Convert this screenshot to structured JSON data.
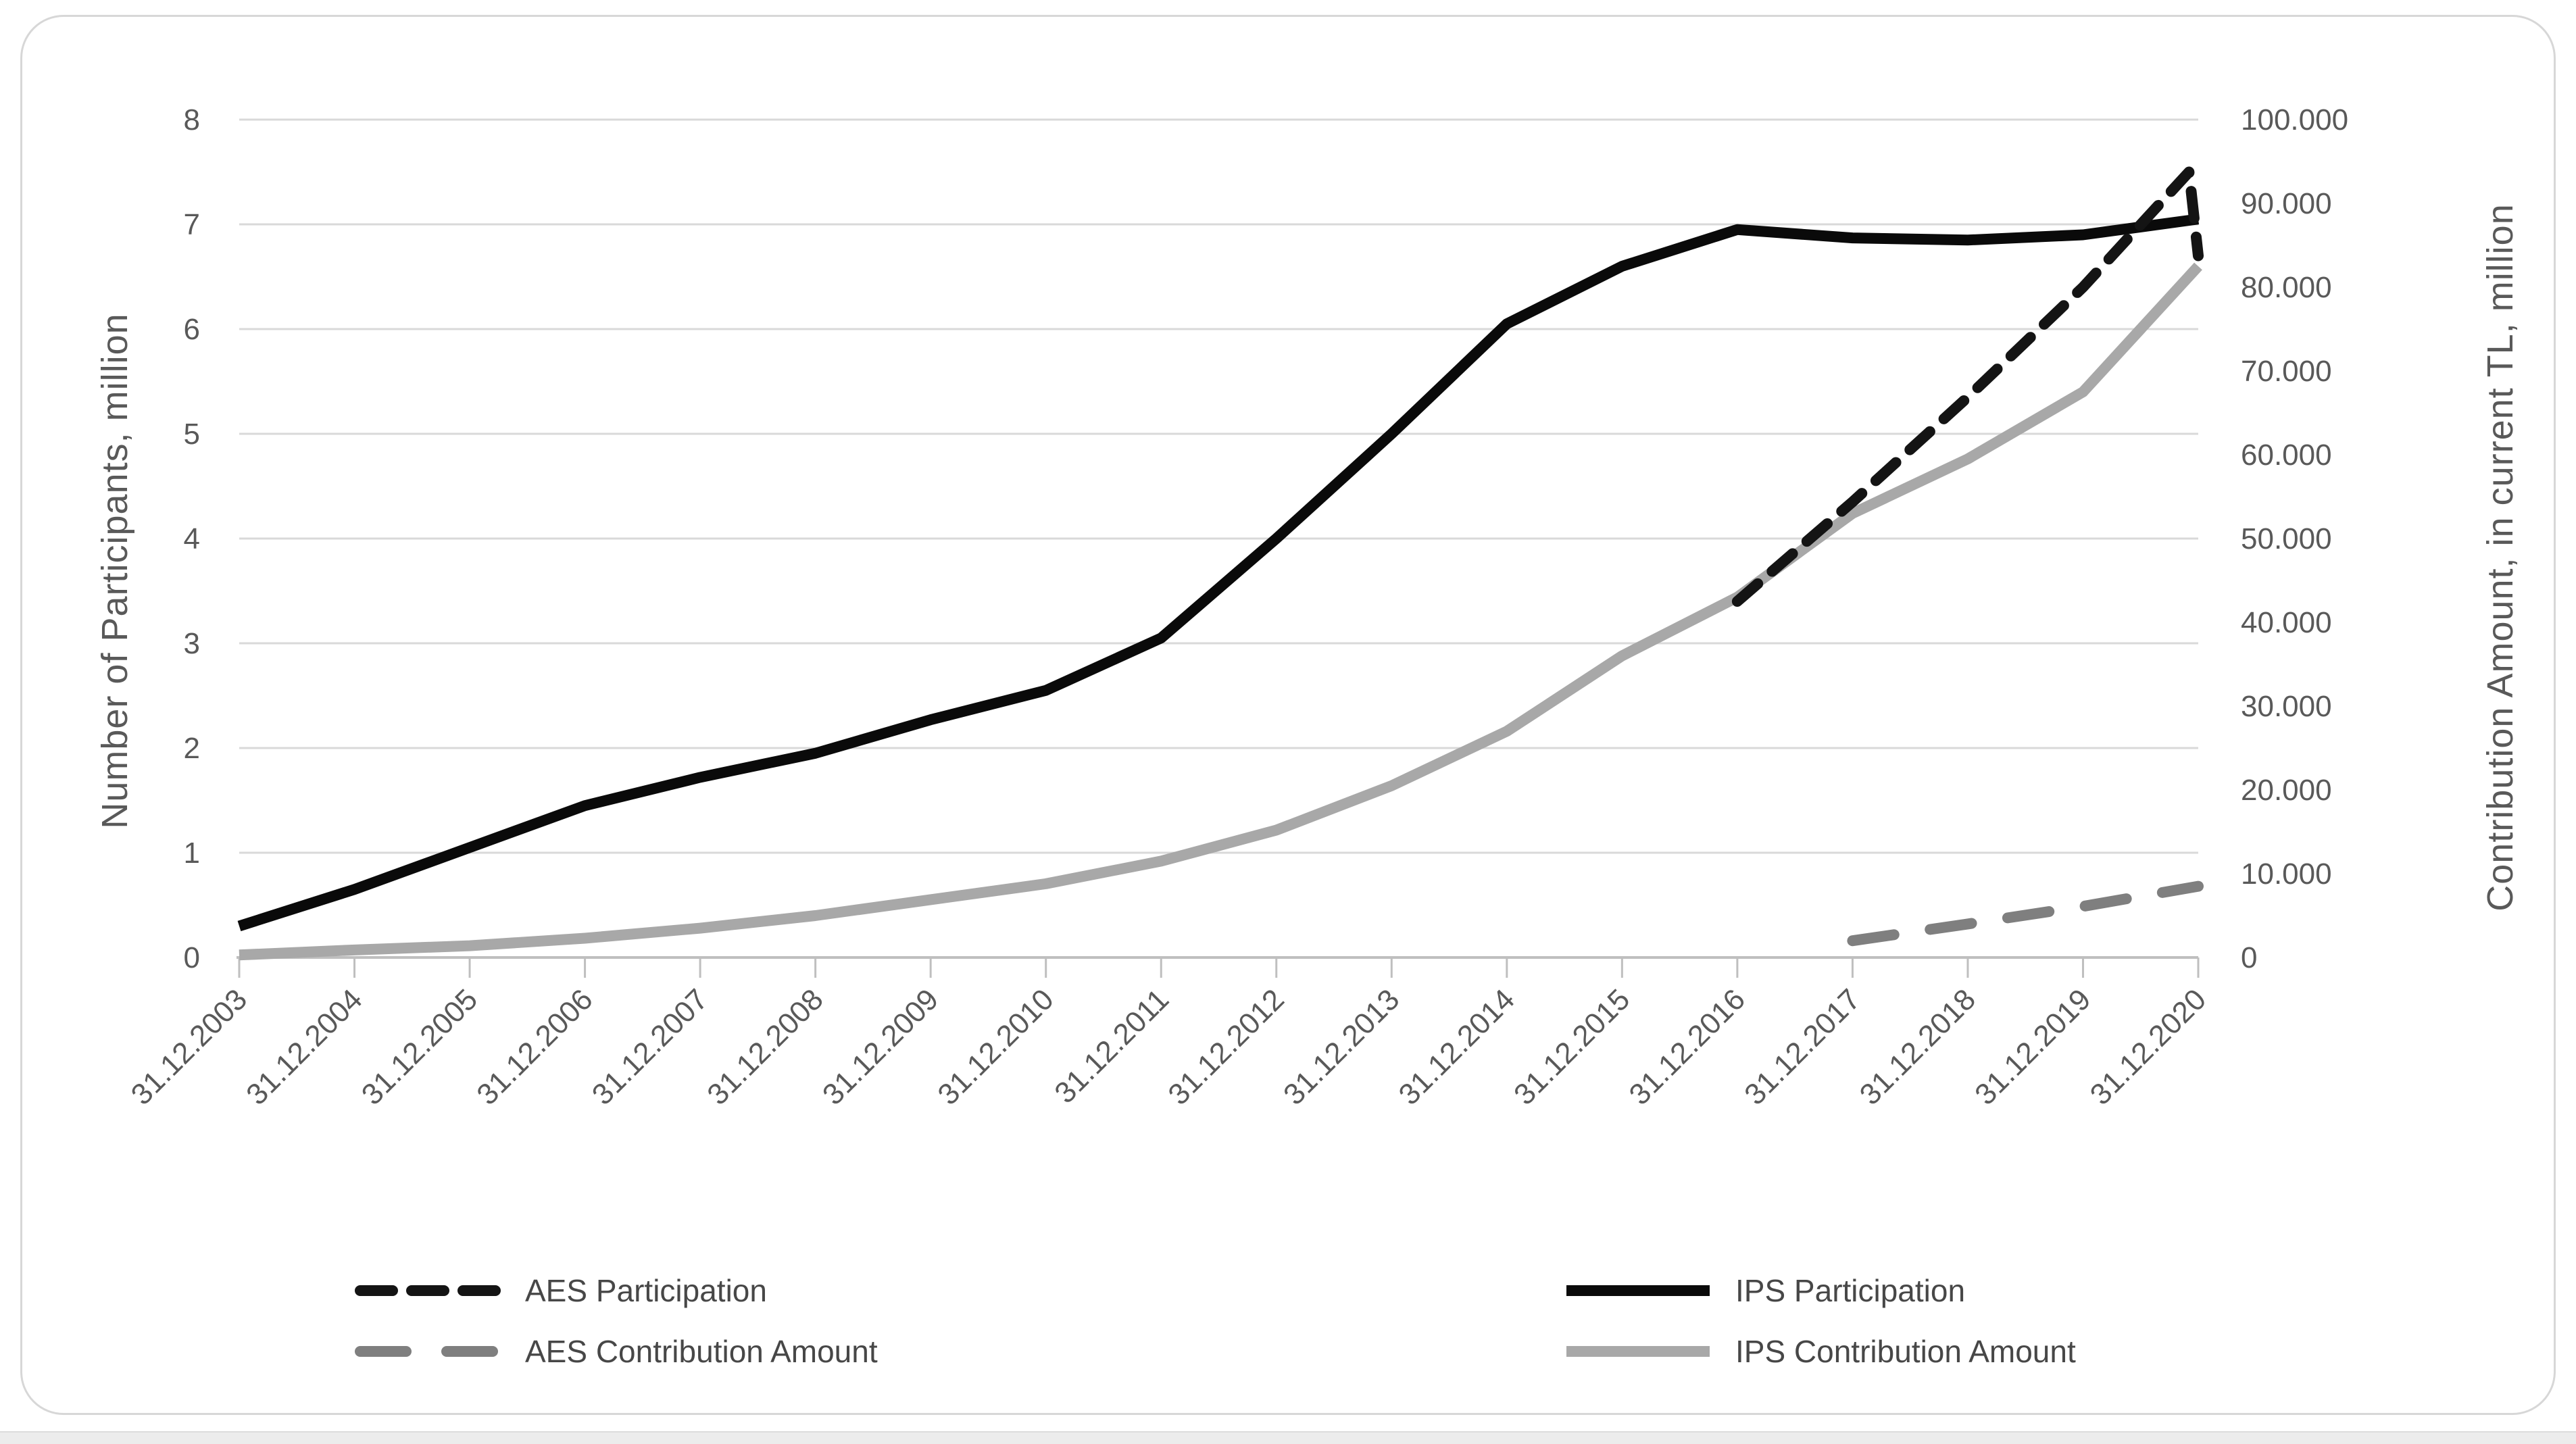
{
  "chart_data": {
    "type": "line",
    "title": "",
    "x_labels": [
      "31.12.2003",
      "31.12.2004",
      "31.12.2005",
      "31.12.2006",
      "31.12.2007",
      "31.12.2008",
      "31.12.2009",
      "31.12.2010",
      "31.12.2011",
      "31.12.2012",
      "31.12.2013",
      "31.12.2014",
      "31.12.2015",
      "31.12.2016",
      "31.12.2017",
      "31.12.2018",
      "31.12.2019",
      "31.12.2020"
    ],
    "x_range": [
      2003,
      2020
    ],
    "grid": "horizontal",
    "legend_position": "bottom",
    "y_left": {
      "label": "Number of Participants, million",
      "min": 0,
      "max": 8,
      "ticks": [
        "0",
        "1",
        "2",
        "3",
        "4",
        "5",
        "6",
        "7",
        "8"
      ]
    },
    "y_right": {
      "label": "Contribution Amount, in current TL, million",
      "min": 0,
      "max": 100000,
      "tick_labels": [
        "0",
        "10.000",
        "20.000",
        "30.000",
        "40.000",
        "50.000",
        "60.000",
        "70.000",
        "80.000",
        "90.000",
        "100.000"
      ]
    },
    "series": [
      {
        "id": "ips_contribution",
        "name": "IPS Contribution Amount",
        "axis": "right",
        "color": "#a8a8a8",
        "style": "solid",
        "points": [
          [
            2003,
            300
          ],
          [
            2004,
            900
          ],
          [
            2005,
            1400
          ],
          [
            2006,
            2300
          ],
          [
            2007,
            3500
          ],
          [
            2008,
            5000
          ],
          [
            2009,
            6900
          ],
          [
            2010,
            8800
          ],
          [
            2011,
            11500
          ],
          [
            2012,
            15200
          ],
          [
            2013,
            20500
          ],
          [
            2014,
            27000
          ],
          [
            2015,
            36000
          ],
          [
            2016,
            43000
          ],
          [
            2017,
            53000
          ],
          [
            2018,
            59500
          ],
          [
            2019,
            67500
          ],
          [
            2020,
            82500
          ]
        ]
      },
      {
        "id": "ips_participation",
        "name": "IPS Participation",
        "axis": "left",
        "color": "#0a0a0a",
        "style": "solid",
        "points": [
          [
            2003,
            0.3
          ],
          [
            2004,
            0.65
          ],
          [
            2005,
            1.05
          ],
          [
            2006,
            1.45
          ],
          [
            2007,
            1.72
          ],
          [
            2008,
            1.95
          ],
          [
            2009,
            2.27
          ],
          [
            2010,
            2.55
          ],
          [
            2011,
            3.05
          ],
          [
            2012,
            4.0
          ],
          [
            2013,
            5.0
          ],
          [
            2014,
            6.05
          ],
          [
            2015,
            6.6
          ],
          [
            2016,
            6.95
          ],
          [
            2017,
            6.87
          ],
          [
            2018,
            6.85
          ],
          [
            2019,
            6.9
          ],
          [
            2020,
            7.05
          ]
        ]
      },
      {
        "id": "aes_contribution",
        "name": "AES Contribution Amount",
        "axis": "right",
        "color": "#7f7f7f",
        "style": "long-dashed",
        "points": [
          [
            2017,
            2000
          ],
          [
            2018,
            4000
          ],
          [
            2019,
            6100
          ],
          [
            2020,
            8500
          ]
        ]
      },
      {
        "id": "aes_participation",
        "name": "AES Participation",
        "axis": "left",
        "color": "#141414",
        "style": "dashed",
        "points": [
          [
            2016,
            3.4
          ],
          [
            2017,
            4.35
          ],
          [
            2018,
            5.35
          ],
          [
            2019,
            6.4
          ],
          [
            2019.92,
            7.5
          ],
          [
            2020,
            6.7
          ]
        ]
      }
    ],
    "legend": [
      {
        "series": "aes_participation",
        "label": "AES Participation"
      },
      {
        "series": "ips_participation",
        "label": "IPS Participation"
      },
      {
        "series": "aes_contribution",
        "label": "AES Contribution Amount"
      },
      {
        "series": "ips_contribution",
        "label": "IPS Contribution Amount"
      }
    ]
  },
  "colors": {
    "gridline": "#d9d9d9",
    "axis_line": "#bfbfbf",
    "tick_text": "#595959",
    "legend_text": "#474747",
    "card_border": "#d7d7d7",
    "bottom_strip": "#ececec"
  }
}
